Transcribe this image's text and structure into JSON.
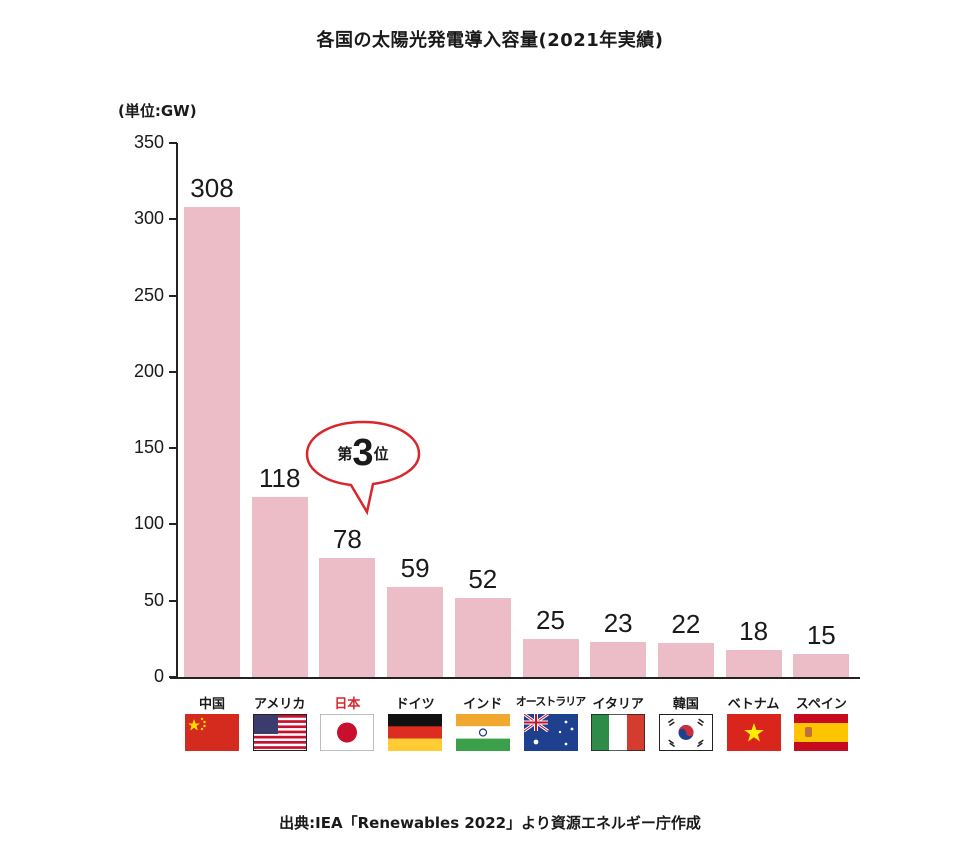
{
  "title": "各国の太陽光発電導入容量(2021年実績)",
  "unit_label": "(単位:GW)",
  "source": "出典:IEA「Renewables 2022」より資源エネルギー庁作成",
  "callout": {
    "prefix": "第",
    "rank": "3",
    "suffix": "位",
    "target": "日本",
    "color": "#d9262b"
  },
  "colors": {
    "bar": "#ecbdc6",
    "axis": "#222222",
    "highlight_label": "#d9262b"
  },
  "y_ticks": [
    "350",
    "300",
    "250",
    "200",
    "150",
    "100",
    "50",
    "0"
  ],
  "countries": [
    {
      "name": "中国",
      "value": "308",
      "flag": "china-flag"
    },
    {
      "name": "アメリカ",
      "value": "118",
      "flag": "usa-flag"
    },
    {
      "name": "日本",
      "value": "78",
      "flag": "japan-flag"
    },
    {
      "name": "ドイツ",
      "value": "59",
      "flag": "germany-flag"
    },
    {
      "name": "インド",
      "value": "52",
      "flag": "india-flag"
    },
    {
      "name": "オーストラリア",
      "value": "25",
      "flag": "australia-flag"
    },
    {
      "name": "イタリア",
      "value": "23",
      "flag": "italy-flag"
    },
    {
      "name": "韓国",
      "value": "22",
      "flag": "korea-flag"
    },
    {
      "name": "ベトナム",
      "value": "18",
      "flag": "vietnam-flag"
    },
    {
      "name": "スペイン",
      "value": "15",
      "flag": "spain-flag"
    }
  ],
  "chart_data": {
    "type": "bar",
    "title": "各国の太陽光発電導入容量(2021年実績)",
    "categories": [
      "中国",
      "アメリカ",
      "日本",
      "ドイツ",
      "インド",
      "オーストラリア",
      "イタリア",
      "韓国",
      "ベトナム",
      "スペイン"
    ],
    "values": [
      308,
      118,
      78,
      59,
      52,
      25,
      23,
      22,
      18,
      15
    ],
    "xlabel": "",
    "ylabel": "(単位:GW)",
    "ylim": [
      0,
      350
    ],
    "yticks": [
      0,
      50,
      100,
      150,
      200,
      250,
      300,
      350
    ],
    "grid": false,
    "legend": null,
    "annotations": [
      "第3位 (日本)"
    ],
    "source": "出典:IEA「Renewables 2022」より資源エネルギー庁作成"
  }
}
